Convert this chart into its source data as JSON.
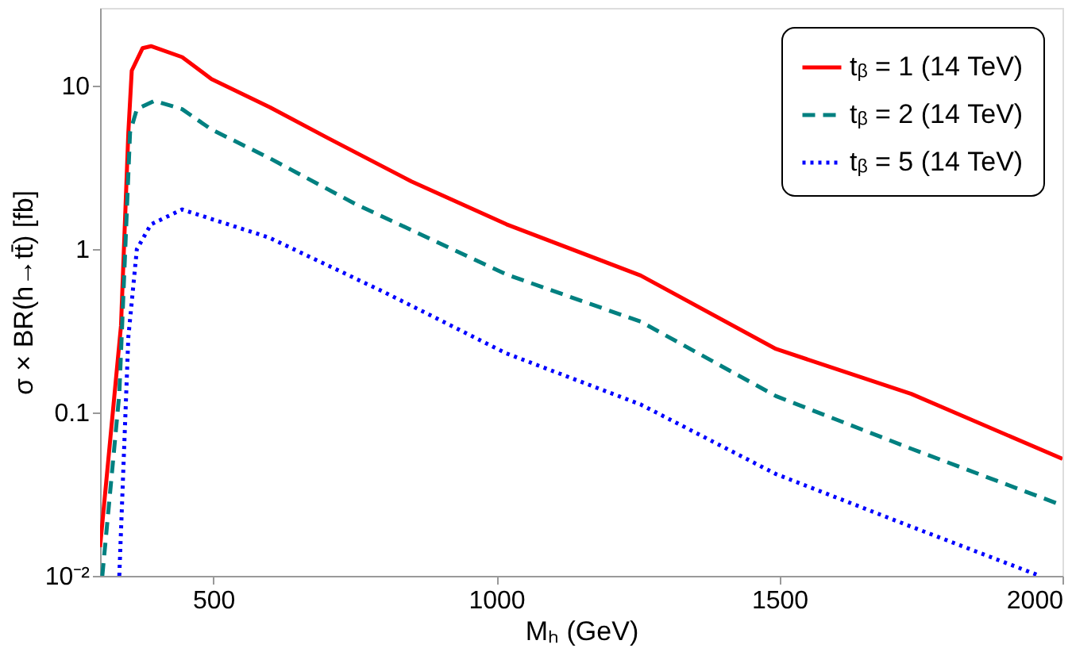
{
  "chart_data": {
    "type": "line",
    "xlabel": "Mₕ (GeV)",
    "ylabel": "σ × BR(h→tt̄) [fb]",
    "log": "y",
    "grid": false,
    "legend": "top right",
    "xlim": [
      300,
      2000
    ],
    "xticks": [
      500,
      1000,
      1500,
      2000
    ],
    "ylim": [
      0.01,
      30
    ],
    "yticks": [
      {
        "value": 0.01,
        "label": "10⁻²"
      },
      0.1,
      1,
      10
    ],
    "series": [
      {
        "name": "tᵦ = 1 (14 TeV)",
        "color": "#ff0000",
        "line_style": "solid",
        "x": [
          300,
          337,
          350,
          356,
          375,
          390,
          445,
          497,
          600,
          702,
          850,
          1018,
          1255,
          1494,
          1733,
          2000
        ],
        "values": [
          0.015,
          0.34,
          5.2,
          12.4,
          17,
          17.5,
          15,
          11,
          7.4,
          4.8,
          2.6,
          1.42,
          0.69,
          0.245,
          0.13,
          0.052
        ]
      },
      {
        "name": "tᵦ = 2 (14 TeV)",
        "color": "#008080",
        "line_style": "dashed",
        "x": [
          304,
          334,
          353,
          365,
          396,
          445,
          497,
          600,
          750,
          1018,
          1255,
          1494,
          1733,
          2000
        ],
        "values": [
          0.01,
          0.13,
          5.2,
          7.2,
          8.1,
          7.2,
          5.4,
          3.6,
          1.9,
          0.7,
          0.36,
          0.126,
          0.06,
          0.027
        ]
      },
      {
        "name": "tᵦ = 5 (14 TeV)",
        "color": "#0000ff",
        "line_style": "dotted",
        "x": [
          334,
          350,
          365,
          390,
          445,
          598,
          800,
          1018,
          1255,
          1494,
          1733,
          1960
        ],
        "values": [
          0.01,
          0.29,
          1.0,
          1.42,
          1.75,
          1.18,
          0.55,
          0.23,
          0.112,
          0.042,
          0.02,
          0.01
        ]
      }
    ]
  }
}
